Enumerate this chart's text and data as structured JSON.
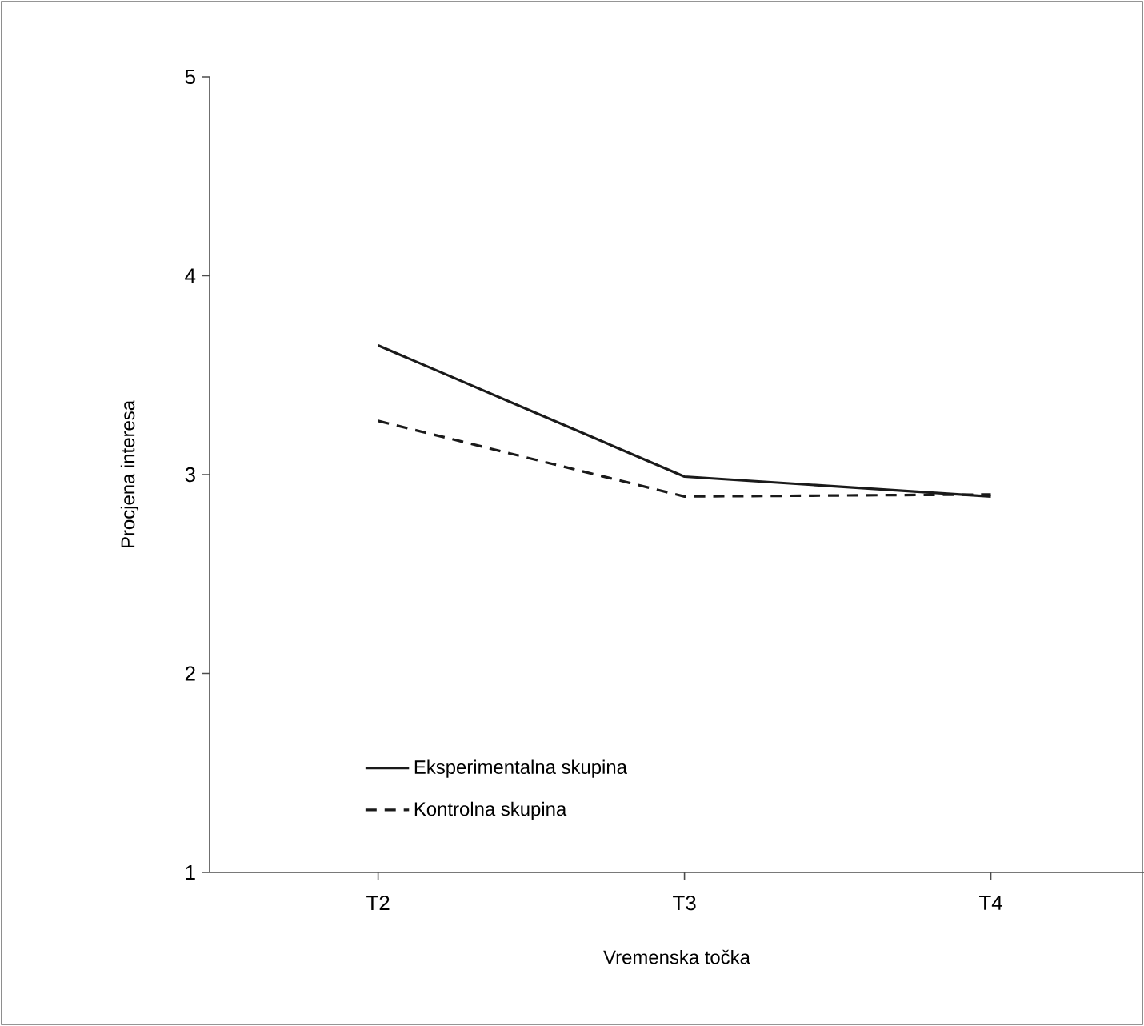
{
  "chart_data": {
    "type": "line",
    "xlabel": "Vremenska točka",
    "ylabel": "Procjena interesa",
    "categories": [
      "T2",
      "T3",
      "T4"
    ],
    "series": [
      {
        "name": "Eksperimentalna skupina",
        "color": "#1a1a1a",
        "line_style": "solid",
        "values": [
          3.65,
          2.99,
          2.89
        ]
      },
      {
        "name": "Kontrolna skupina",
        "color": "#1a1a1a",
        "line_style": "dashed",
        "values": [
          3.27,
          2.89,
          2.9
        ]
      }
    ],
    "ylim": [
      1,
      5
    ],
    "yticks": [
      1,
      2,
      3,
      4,
      5
    ],
    "grid": false,
    "legend": "bottom left",
    "marker": "none"
  }
}
